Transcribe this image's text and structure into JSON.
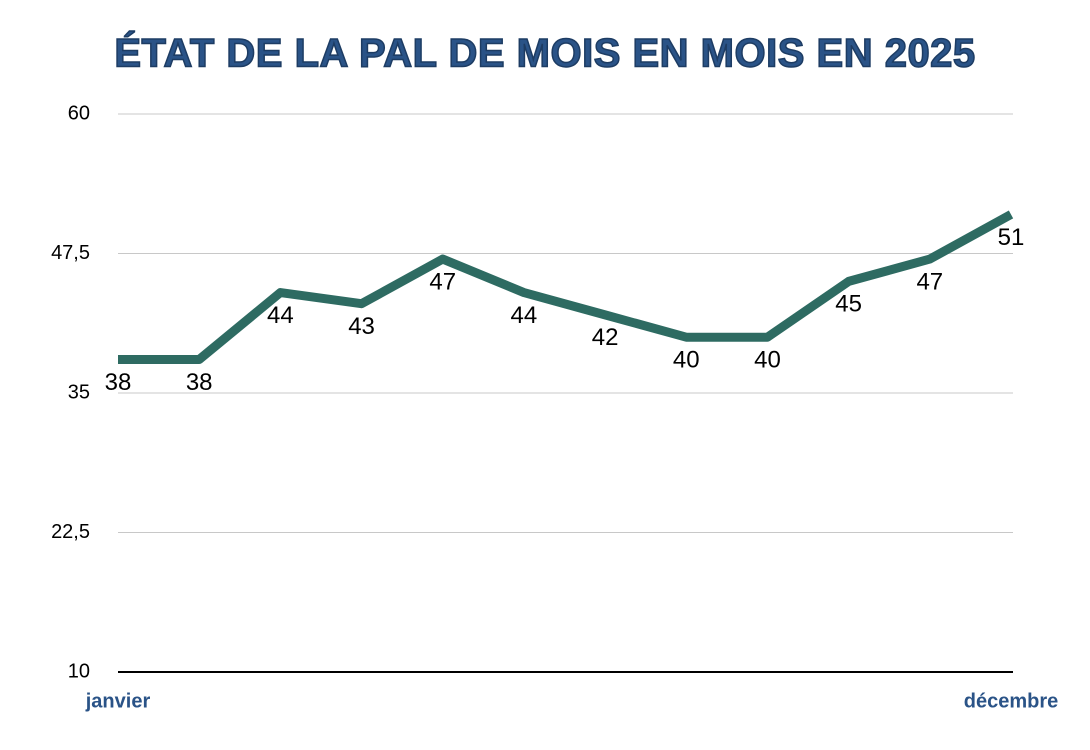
{
  "chart_data": {
    "type": "line",
    "title": "ÉTAT DE LA PAL DE MOIS EN MOIS EN 2025",
    "categories": [
      "janvier",
      null,
      null,
      null,
      null,
      null,
      null,
      null,
      null,
      null,
      null,
      "décembre"
    ],
    "series": [
      {
        "name": "PAL",
        "color": "#2e6b62",
        "values": [
          38,
          38,
          44,
          43,
          47,
          44,
          42,
          40,
          40,
          45,
          47,
          51
        ]
      }
    ],
    "ylim": [
      10,
      60
    ],
    "yticks": [
      10,
      {
        "value": 22.5,
        "label": "22,5"
      },
      35,
      {
        "value": 47.5,
        "label": "47,5"
      },
      60
    ],
    "grid": true
  }
}
